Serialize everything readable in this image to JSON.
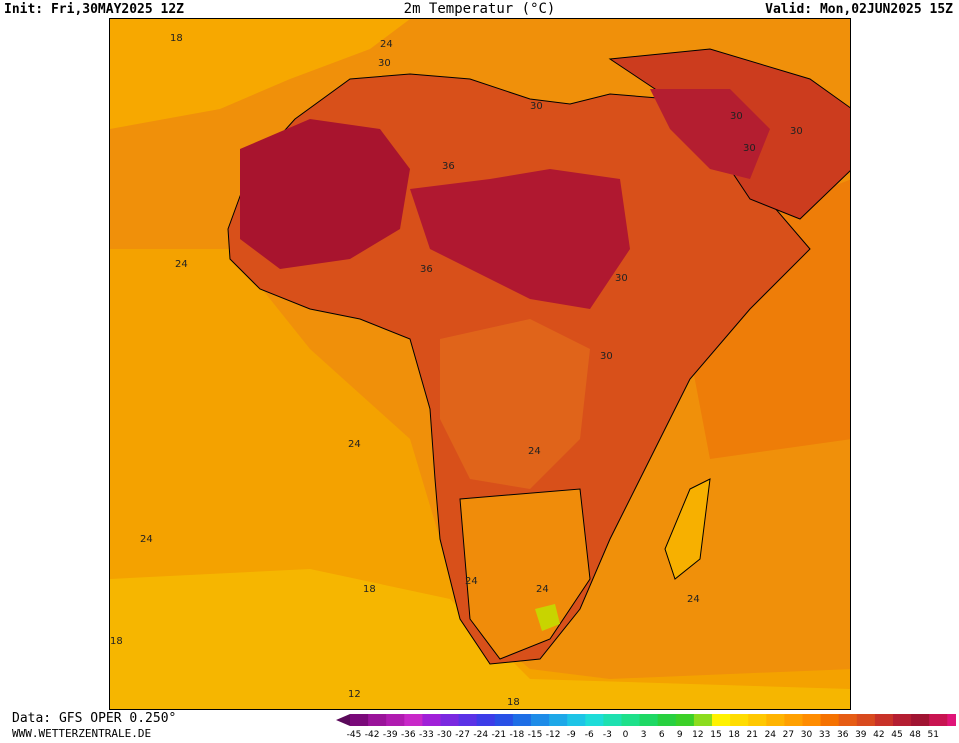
{
  "header": {
    "init": "Init: Fri,30MAY2025 12Z",
    "title": "2m Temperatur (°C)",
    "valid": "Valid: Mon,02JUN2025 15Z"
  },
  "footer": {
    "source": "Data: GFS OPER 0.250°",
    "website": "WWW.WETTERZENTRALE.DE"
  },
  "map": {
    "contour_labels": [
      "18",
      "24",
      "30",
      "30",
      "30",
      "30",
      "30",
      "36",
      "36",
      "30",
      "30",
      "24",
      "24",
      "24",
      "24",
      "24",
      "24",
      "18",
      "18",
      "12",
      "18",
      "24"
    ]
  },
  "colorbar": {
    "ticks": [
      "-45",
      "-42",
      "-39",
      "-36",
      "-33",
      "-30",
      "-27",
      "-24",
      "-21",
      "-18",
      "-15",
      "-12",
      "-9",
      "-6",
      "-3",
      "0",
      "3",
      "6",
      "9",
      "12",
      "15",
      "18",
      "21",
      "24",
      "27",
      "30",
      "33",
      "36",
      "39",
      "42",
      "45",
      "48",
      "51"
    ],
    "colors": [
      "#5a0a5a",
      "#7a0a7a",
      "#9a149a",
      "#b01cb0",
      "#c828c8",
      "#a020d8",
      "#7a28e0",
      "#5a32e6",
      "#3c3ce8",
      "#2850e6",
      "#1e6ee6",
      "#1e8ce8",
      "#1ea8e8",
      "#1ec4e6",
      "#1edcd8",
      "#1ee0b0",
      "#1ee08a",
      "#1ed864",
      "#28d040",
      "#3cd028",
      "#8cdc1e",
      "#fff200",
      "#ffdc00",
      "#ffc800",
      "#ffb400",
      "#ffa000",
      "#ff8c00",
      "#f57200",
      "#e65c14",
      "#d84a1e",
      "#c83228",
      "#b41e32",
      "#a01432",
      "#c81450",
      "#e01478",
      "#ff1ea0"
    ]
  }
}
